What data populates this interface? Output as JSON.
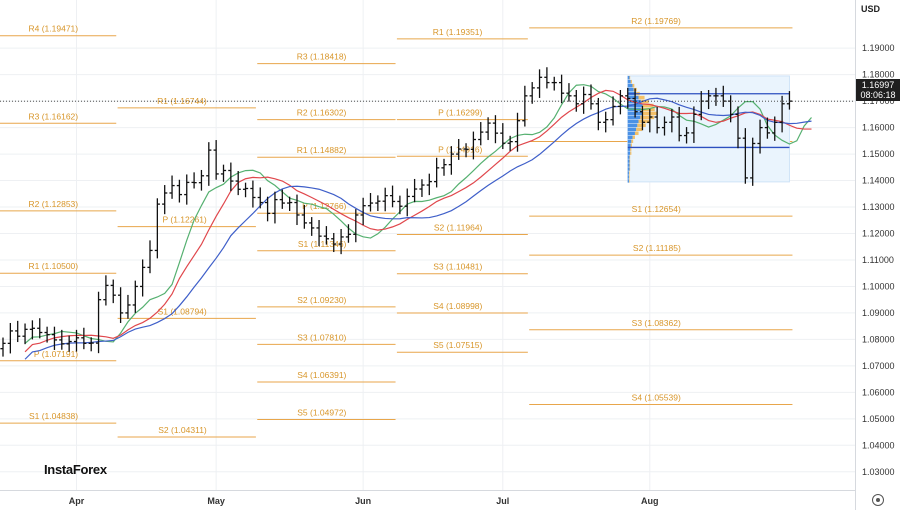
{
  "currency": "USD",
  "last_price": "1.16997",
  "countdown": "08:06:18",
  "logo": "InstaForex",
  "chart_data": {
    "type": "candlestick",
    "title": "",
    "y_axis": {
      "min": 1.025,
      "max": 1.198,
      "ticks": [
        "1.19000",
        "1.18000",
        "1.17000",
        "1.16000",
        "1.15000",
        "1.14000",
        "1.13000",
        "1.12000",
        "1.11000",
        "1.10000",
        "1.09000",
        "1.08000",
        "1.07000",
        "1.06000",
        "1.05000",
        "1.04000",
        "1.03000"
      ]
    },
    "x_axis": {
      "months": [
        {
          "label": "Apr",
          "x": 10
        },
        {
          "label": "May",
          "x": 29
        },
        {
          "label": "Jun",
          "x": 49
        },
        {
          "label": "Jul",
          "x": 68
        },
        {
          "label": "Aug",
          "x": 88
        }
      ],
      "num_bars": 108
    },
    "last_price_line": 1.16997,
    "pivot_levels": [
      {
        "label": "R4 (1.19471)",
        "value": 1.19471,
        "x0": 0,
        "x1": 15
      },
      {
        "label": "R3 (1.16162)",
        "value": 1.16162,
        "x0": 0,
        "x1": 15
      },
      {
        "label": "R2 (1.12853)",
        "value": 1.12853,
        "x0": 0,
        "x1": 15
      },
      {
        "label": "R1 (1.10500)",
        "value": 1.105,
        "x0": 0,
        "x1": 15
      },
      {
        "label": "P (1.07191)",
        "value": 1.07191,
        "x0": 0,
        "x1": 15
      },
      {
        "label": "S1 (1.04838)",
        "value": 1.04838,
        "x0": 0,
        "x1": 15
      },
      {
        "label": "R1 (1.16744)",
        "value": 1.16744,
        "x0": 16,
        "x1": 34
      },
      {
        "label": "P (1.12261)",
        "value": 1.12261,
        "x0": 16,
        "x1": 34
      },
      {
        "label": "S1 (1.08794)",
        "value": 1.08794,
        "x0": 16,
        "x1": 34
      },
      {
        "label": "S2 (1.04311)",
        "value": 1.04311,
        "x0": 16,
        "x1": 34
      },
      {
        "label": "R3 (1.18418)",
        "value": 1.18418,
        "x0": 35,
        "x1": 53
      },
      {
        "label": "R2 (1.16302)",
        "value": 1.16302,
        "x0": 35,
        "x1": 53
      },
      {
        "label": "R1 (1.14882)",
        "value": 1.14882,
        "x0": 35,
        "x1": 53
      },
      {
        "label": "P (1.12766)",
        "value": 1.12766,
        "x0": 35,
        "x1": 53
      },
      {
        "label": "S1 (1.11346)",
        "value": 1.11346,
        "x0": 35,
        "x1": 53
      },
      {
        "label": "S2 (1.09230)",
        "value": 1.0923,
        "x0": 35,
        "x1": 53
      },
      {
        "label": "S3 (1.07810)",
        "value": 1.0781,
        "x0": 35,
        "x1": 53
      },
      {
        "label": "S4 (1.06391)",
        "value": 1.06391,
        "x0": 35,
        "x1": 53
      },
      {
        "label": "S5 (1.04972)",
        "value": 1.04972,
        "x0": 35,
        "x1": 53
      },
      {
        "label": "R1 (1.19351)",
        "value": 1.19351,
        "x0": 54,
        "x1": 71
      },
      {
        "label": "P (1.16299)",
        "value": 1.16299,
        "x0": 54,
        "x1": 71
      },
      {
        "label": "P (1.14916)",
        "value": 1.14916,
        "x0": 54,
        "x1": 71
      },
      {
        "label": "S2 (1.11964)",
        "value": 1.11964,
        "x0": 54,
        "x1": 71
      },
      {
        "label": "S3 (1.10481)",
        "value": 1.10481,
        "x0": 54,
        "x1": 71
      },
      {
        "label": "S4 (1.08998)",
        "value": 1.08998,
        "x0": 54,
        "x1": 71
      },
      {
        "label": "S5 (1.07515)",
        "value": 1.07515,
        "x0": 54,
        "x1": 71
      },
      {
        "label": "R2 (1.19769)",
        "value": 1.19769,
        "x0": 72,
        "x1": 107
      },
      {
        "label": "P (1.15477)",
        "value": 1.15477,
        "x0": 72,
        "x1": 107
      },
      {
        "label": "S1 (1.12654)",
        "value": 1.12654,
        "x0": 72,
        "x1": 107
      },
      {
        "label": "S2 (1.11185)",
        "value": 1.11185,
        "x0": 72,
        "x1": 107
      },
      {
        "label": "S3 (1.08362)",
        "value": 1.08362,
        "x0": 72,
        "x1": 107
      },
      {
        "label": "S4 (1.05539)",
        "value": 1.05539,
        "x0": 72,
        "x1": 107
      }
    ],
    "close": [
      1.0785,
      1.0832,
      1.0812,
      1.0838,
      1.0842,
      1.0826,
      1.0818,
      1.0798,
      1.0783,
      1.0792,
      1.0806,
      1.0785,
      1.0786,
      1.095,
      1.1004,
      1.0967,
      1.09,
      1.093,
      1.1,
      1.1072,
      1.1136,
      1.1311,
      1.1353,
      1.1381,
      1.1347,
      1.1393,
      1.1392,
      1.1418,
      1.1515,
      1.1425,
      1.1438,
      1.1398,
      1.1367,
      1.137,
      1.1336,
      1.1317,
      1.1276,
      1.1328,
      1.1315,
      1.1317,
      1.127,
      1.124,
      1.1221,
      1.119,
      1.118,
      1.116,
      1.1187,
      1.1197,
      1.127,
      1.1305,
      1.1315,
      1.1322,
      1.1343,
      1.1321,
      1.1303,
      1.134,
      1.1368,
      1.1383,
      1.1396,
      1.1448,
      1.146,
      1.15,
      1.1519,
      1.1518,
      1.1555,
      1.1583,
      1.1617,
      1.1579,
      1.1541,
      1.1547,
      1.1626,
      1.172,
      1.175,
      1.179,
      1.177,
      1.177,
      1.173,
      1.172,
      1.169,
      1.1725,
      1.169,
      1.162,
      1.163,
      1.168,
      1.172,
      1.171,
      1.166,
      1.162,
      1.164,
      1.16,
      1.162,
      1.164,
      1.157,
      1.158,
      1.165,
      1.17,
      1.172,
      1.172,
      1.17,
      1.165,
      1.156,
      1.141,
      1.154,
      1.16,
      1.158,
      1.162,
      1.169,
      1.17
    ]
  }
}
